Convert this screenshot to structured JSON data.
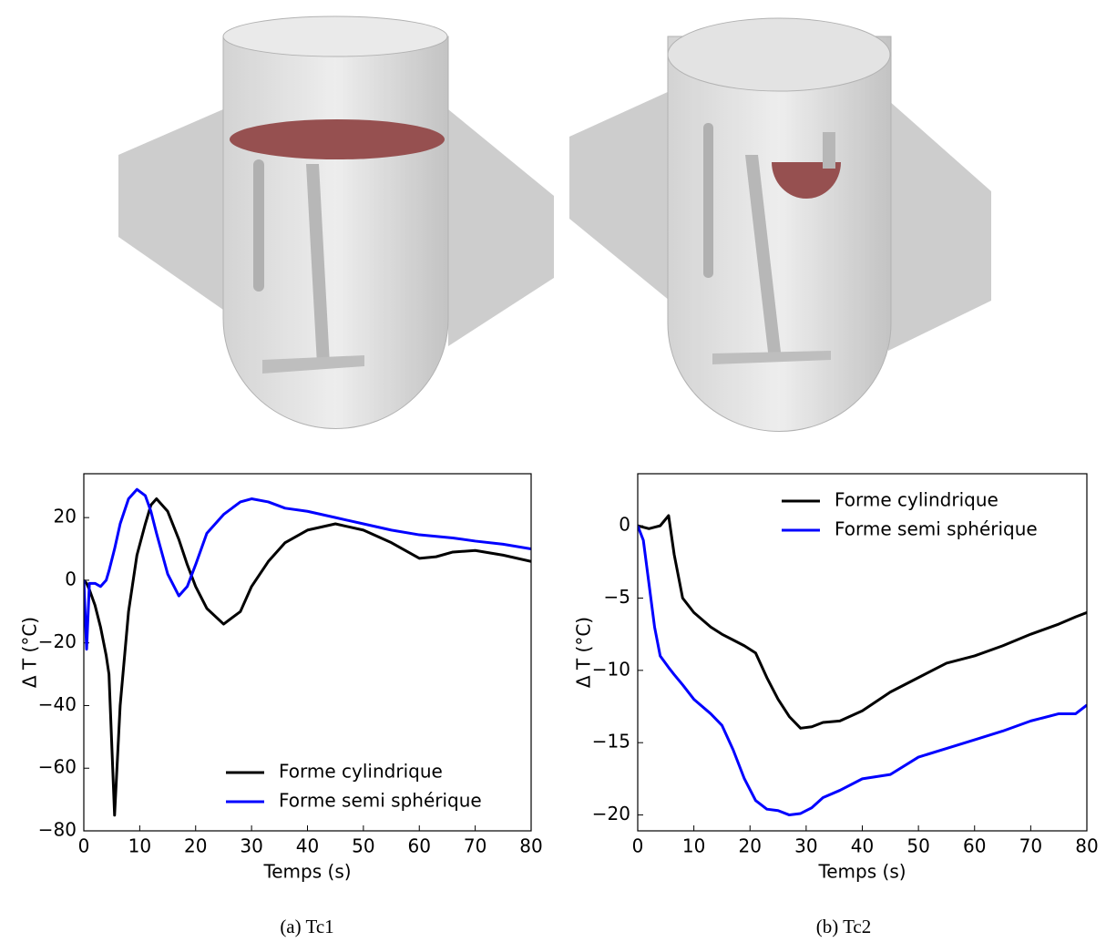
{
  "chart_data": [
    {
      "type": "line",
      "caption": "(a) Tc1",
      "xlabel": "Temps (s)",
      "ylabel": "Δ T (°C)",
      "x": [
        0,
        0.5,
        1,
        2,
        3,
        4,
        4.5,
        5.5,
        6.5,
        8,
        9.5,
        11,
        12,
        13,
        15,
        17,
        18.5,
        20,
        22,
        25,
        28,
        30,
        33,
        36,
        40,
        45,
        50,
        55,
        60,
        63,
        66,
        70,
        75,
        80
      ],
      "series": [
        {
          "name": "Forme cylindrique",
          "color": "#000000",
          "values": [
            0,
            -1,
            -3,
            -8,
            -15,
            -24,
            -30,
            -75,
            -40,
            -10,
            8,
            18,
            24,
            26,
            22,
            13,
            5,
            -2,
            -9,
            -14,
            -10,
            -2,
            6,
            12,
            16,
            18,
            16,
            12,
            7,
            7.5,
            9,
            9.5,
            8,
            6
          ]
        },
        {
          "name": "Forme semi sphérique",
          "color": "#0000ff",
          "values": [
            0,
            -22,
            -1,
            -1,
            -2,
            0,
            3,
            10,
            18,
            26,
            29,
            27,
            22,
            15,
            2,
            -5,
            -2,
            5,
            15,
            21,
            25,
            26,
            25,
            23,
            22,
            20,
            18,
            16,
            14.5,
            14,
            13.5,
            12.5,
            11.5,
            10
          ]
        }
      ],
      "xlim": [
        0,
        80
      ],
      "ylim": [
        -80,
        34
      ],
      "xticks": [
        0,
        10,
        20,
        30,
        40,
        50,
        60,
        70,
        80
      ],
      "yticks": [
        {
          "value": -80,
          "label": "−80"
        },
        {
          "value": -60,
          "label": "−60"
        },
        {
          "value": -40,
          "label": "−40"
        },
        {
          "value": -20,
          "label": "−20"
        },
        0,
        20
      ],
      "legend": "lower right"
    },
    {
      "type": "line",
      "caption": "(b) Tc2",
      "xlabel": "Temps (s)",
      "ylabel": "Δ T (°C)",
      "x": [
        0,
        1,
        2,
        3,
        4,
        5.5,
        6.5,
        8,
        10,
        13,
        15,
        17,
        19,
        21,
        23,
        25,
        27,
        29,
        31,
        33,
        36,
        40,
        45,
        50,
        55,
        60,
        65,
        70,
        75,
        78,
        80
      ],
      "series": [
        {
          "name": "Forme cylindrique",
          "color": "#000000",
          "values": [
            0,
            -0.1,
            -0.2,
            -0.1,
            0,
            0.7,
            -2,
            -5,
            -6,
            -7,
            -7.5,
            -7.9,
            -8.3,
            -8.8,
            -10.5,
            -12,
            -13.2,
            -14,
            -13.9,
            -13.6,
            -13.5,
            -12.8,
            -11.5,
            -10.5,
            -9.5,
            -9,
            -8.3,
            -7.5,
            -6.8,
            -6.3,
            -6
          ]
        },
        {
          "name": "Forme semi sphérique",
          "color": "#0000ff",
          "values": [
            0,
            -1,
            -4,
            -7,
            -9,
            -9.8,
            -10.3,
            -11,
            -12,
            -13,
            -13.8,
            -15.5,
            -17.5,
            -19,
            -19.6,
            -19.7,
            -20,
            -19.9,
            -19.5,
            -18.8,
            -18.3,
            -17.5,
            -17.2,
            -16,
            -15.4,
            -14.8,
            -14.2,
            -13.5,
            -13,
            -13,
            -12.4
          ]
        }
      ],
      "xlim": [
        0,
        80
      ],
      "ylim": [
        -21.1,
        3.6
      ],
      "xticks": [
        0,
        10,
        20,
        30,
        40,
        50,
        60,
        70,
        80
      ],
      "yticks": [
        {
          "value": -20,
          "label": "−20"
        },
        {
          "value": -15,
          "label": "−15"
        },
        {
          "value": -10,
          "label": "−10"
        },
        {
          "value": -5,
          "label": "−5"
        },
        0
      ],
      "legend": "upper right"
    }
  ]
}
